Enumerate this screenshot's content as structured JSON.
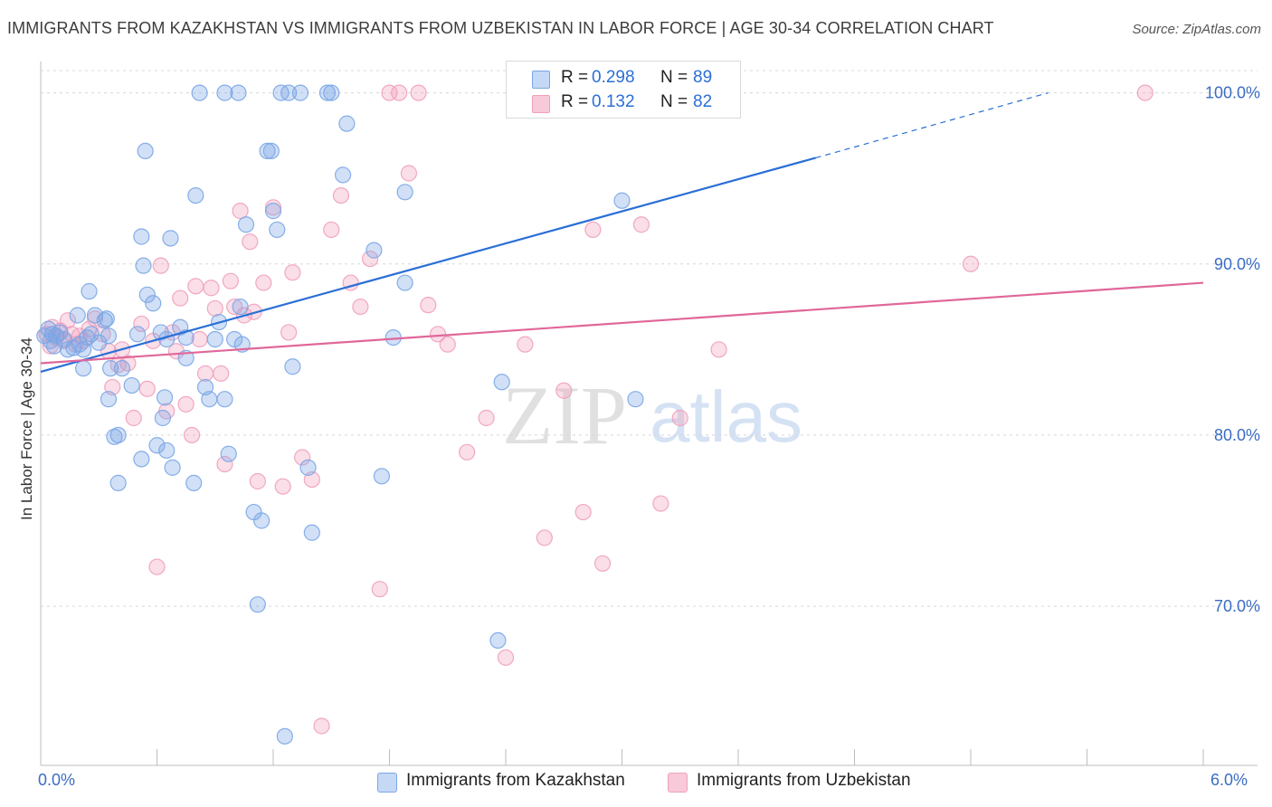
{
  "title": "IMMIGRANTS FROM KAZAKHSTAN VS IMMIGRANTS FROM UZBEKISTAN IN LABOR FORCE | AGE 30-34 CORRELATION CHART",
  "source": "Source: ZipAtlas.com",
  "watermark": {
    "zip": "ZIP",
    "atlas": "atlas"
  },
  "legend": {
    "rows": [
      {
        "r_label": "R =",
        "r_value": "0.298",
        "n_label": "N =",
        "n_value": "89"
      },
      {
        "r_label": "R =",
        "r_value": "0.132",
        "n_label": "N =",
        "n_value": "82"
      }
    ]
  },
  "bottom_legend": {
    "kazakhstan": "Immigrants from Kazakhstan",
    "uzbekistan": "Immigrants from Uzbekistan"
  },
  "colors": {
    "blue": "#7aa6e6",
    "blue_line": "#2a6fd6",
    "pink": "#f0a0bc",
    "pink_line": "#e0679a",
    "grid": "#d8d8d8",
    "tick_text": "#3b6cc4"
  },
  "chart_data": {
    "type": "scatter",
    "title": "IMMIGRANTS FROM KAZAKHSTAN VS IMMIGRANTS FROM UZBEKISTAN IN LABOR FORCE | AGE 30-34 CORRELATION CHART",
    "xlabel": "",
    "ylabel": "In Labor Force | Age 30-34",
    "xlim": [
      0,
      6
    ],
    "ylim": [
      60.7,
      101.3
    ],
    "x_tick_labels": [
      "0.0%",
      "6.0%"
    ],
    "y_ticks": [
      70,
      80,
      90,
      100
    ],
    "y_tick_labels": [
      "70.0%",
      "80.0%",
      "90.0%",
      "100.0%"
    ],
    "grid": true,
    "series": [
      {
        "name": "Immigrants from Kazakhstan",
        "r": 0.298,
        "n": 89,
        "trend": {
          "x0": 0.0,
          "y0": 83.7,
          "x1": 4.0,
          "y1": 96.2,
          "dash_x1": 5.2,
          "dash_y1": 100.0
        },
        "points": [
          [
            0.02,
            85.8
          ],
          [
            0.04,
            86.2
          ],
          [
            0.05,
            85.5
          ],
          [
            0.06,
            85.9
          ],
          [
            0.07,
            85.2
          ],
          [
            0.08,
            85.8
          ],
          [
            0.1,
            86.0
          ],
          [
            0.12,
            85.6
          ],
          [
            0.14,
            85.0
          ],
          [
            0.17,
            85.1
          ],
          [
            0.19,
            87.0
          ],
          [
            0.2,
            85.3
          ],
          [
            0.22,
            85.0
          ],
          [
            0.22,
            83.9
          ],
          [
            0.24,
            85.7
          ],
          [
            0.25,
            88.4
          ],
          [
            0.26,
            85.9
          ],
          [
            0.28,
            87.0
          ],
          [
            0.3,
            85.4
          ],
          [
            0.33,
            86.7
          ],
          [
            0.34,
            86.8
          ],
          [
            0.35,
            85.8
          ],
          [
            0.35,
            82.1
          ],
          [
            0.36,
            83.9
          ],
          [
            0.38,
            79.9
          ],
          [
            0.4,
            77.2
          ],
          [
            0.4,
            80.0
          ],
          [
            0.42,
            83.9
          ],
          [
            0.47,
            82.9
          ],
          [
            0.5,
            85.9
          ],
          [
            0.52,
            78.6
          ],
          [
            0.52,
            91.6
          ],
          [
            0.53,
            89.9
          ],
          [
            0.54,
            96.6
          ],
          [
            0.55,
            88.2
          ],
          [
            0.58,
            87.7
          ],
          [
            0.6,
            79.4
          ],
          [
            0.62,
            86.0
          ],
          [
            0.63,
            81.0
          ],
          [
            0.64,
            82.2
          ],
          [
            0.65,
            85.6
          ],
          [
            0.65,
            79.1
          ],
          [
            0.67,
            91.5
          ],
          [
            0.68,
            78.1
          ],
          [
            0.72,
            86.3
          ],
          [
            0.75,
            84.5
          ],
          [
            0.75,
            85.7
          ],
          [
            0.79,
            77.2
          ],
          [
            0.8,
            94.0
          ],
          [
            0.82,
            100.0
          ],
          [
            0.85,
            82.8
          ],
          [
            0.87,
            82.1
          ],
          [
            0.9,
            85.6
          ],
          [
            0.92,
            86.6
          ],
          [
            0.95,
            82.1
          ],
          [
            0.97,
            78.9
          ],
          [
            1.0,
            85.6
          ],
          [
            1.02,
            100.0
          ],
          [
            1.03,
            87.5
          ],
          [
            1.04,
            85.3
          ],
          [
            1.06,
            92.3
          ],
          [
            1.1,
            75.5
          ],
          [
            1.12,
            70.1
          ],
          [
            1.14,
            75.0
          ],
          [
            1.17,
            96.6
          ],
          [
            1.19,
            96.6
          ],
          [
            1.2,
            93.1
          ],
          [
            1.22,
            92.0
          ],
          [
            1.24,
            100.0
          ],
          [
            1.26,
            62.4
          ],
          [
            1.28,
            100.0
          ],
          [
            1.3,
            84.0
          ],
          [
            1.34,
            100.0
          ],
          [
            1.38,
            78.1
          ],
          [
            1.4,
            74.3
          ],
          [
            1.48,
            100.0
          ],
          [
            1.56,
            95.2
          ],
          [
            1.58,
            98.2
          ],
          [
            1.72,
            90.8
          ],
          [
            1.76,
            77.6
          ],
          [
            1.82,
            85.7
          ],
          [
            1.88,
            94.2
          ],
          [
            1.88,
            88.9
          ],
          [
            2.36,
            68.0
          ],
          [
            2.38,
            83.1
          ],
          [
            3.0,
            93.7
          ],
          [
            3.07,
            82.1
          ],
          [
            1.5,
            100.0
          ],
          [
            0.95,
            100.0
          ]
        ]
      },
      {
        "name": "Immigrants from Uzbekistan",
        "r": 0.132,
        "n": 82,
        "trend": {
          "x0": 0.0,
          "y0": 84.2,
          "x1": 6.0,
          "y1": 88.9
        },
        "points": [
          [
            0.03,
            85.9
          ],
          [
            0.05,
            85.2
          ],
          [
            0.06,
            86.3
          ],
          [
            0.08,
            85.7
          ],
          [
            0.1,
            86.1
          ],
          [
            0.12,
            85.5
          ],
          [
            0.14,
            86.7
          ],
          [
            0.16,
            85.9
          ],
          [
            0.18,
            85.3
          ],
          [
            0.2,
            85.8
          ],
          [
            0.22,
            85.5
          ],
          [
            0.25,
            86.2
          ],
          [
            0.28,
            86.8
          ],
          [
            0.32,
            85.9
          ],
          [
            0.35,
            84.9
          ],
          [
            0.37,
            82.8
          ],
          [
            0.4,
            84.1
          ],
          [
            0.42,
            85.0
          ],
          [
            0.45,
            84.2
          ],
          [
            0.48,
            81.0
          ],
          [
            0.52,
            86.5
          ],
          [
            0.55,
            82.7
          ],
          [
            0.58,
            85.5
          ],
          [
            0.6,
            72.3
          ],
          [
            0.62,
            89.9
          ],
          [
            0.65,
            81.4
          ],
          [
            0.68,
            86.0
          ],
          [
            0.7,
            84.9
          ],
          [
            0.72,
            88.0
          ],
          [
            0.75,
            81.8
          ],
          [
            0.78,
            80.0
          ],
          [
            0.8,
            88.7
          ],
          [
            0.82,
            85.6
          ],
          [
            0.85,
            83.6
          ],
          [
            0.88,
            88.6
          ],
          [
            0.9,
            87.4
          ],
          [
            0.93,
            83.6
          ],
          [
            0.95,
            78.3
          ],
          [
            0.98,
            89.0
          ],
          [
            1.0,
            87.5
          ],
          [
            1.03,
            93.1
          ],
          [
            1.05,
            87.0
          ],
          [
            1.08,
            91.3
          ],
          [
            1.1,
            87.2
          ],
          [
            1.12,
            77.3
          ],
          [
            1.15,
            88.9
          ],
          [
            1.2,
            93.3
          ],
          [
            1.25,
            77.0
          ],
          [
            1.28,
            86.0
          ],
          [
            1.3,
            89.5
          ],
          [
            1.35,
            78.7
          ],
          [
            1.4,
            77.4
          ],
          [
            1.45,
            63.0
          ],
          [
            1.5,
            92.0
          ],
          [
            1.55,
            94.0
          ],
          [
            1.6,
            88.9
          ],
          [
            1.65,
            87.5
          ],
          [
            1.7,
            90.3
          ],
          [
            1.75,
            71.0
          ],
          [
            1.8,
            100.0
          ],
          [
            1.85,
            100.0
          ],
          [
            1.9,
            95.3
          ],
          [
            1.95,
            100.0
          ],
          [
            2.0,
            87.6
          ],
          [
            2.05,
            85.9
          ],
          [
            2.1,
            85.3
          ],
          [
            2.2,
            79.0
          ],
          [
            2.3,
            81.0
          ],
          [
            2.4,
            67.0
          ],
          [
            2.5,
            85.3
          ],
          [
            2.6,
            74.0
          ],
          [
            2.7,
            82.6
          ],
          [
            2.8,
            75.5
          ],
          [
            2.85,
            92.0
          ],
          [
            2.9,
            72.5
          ],
          [
            3.0,
            100.0
          ],
          [
            3.2,
            76.0
          ],
          [
            3.1,
            92.3
          ],
          [
            3.3,
            81.0
          ],
          [
            3.5,
            85.0
          ],
          [
            5.7,
            100.0
          ],
          [
            4.8,
            90.0
          ]
        ]
      }
    ]
  }
}
